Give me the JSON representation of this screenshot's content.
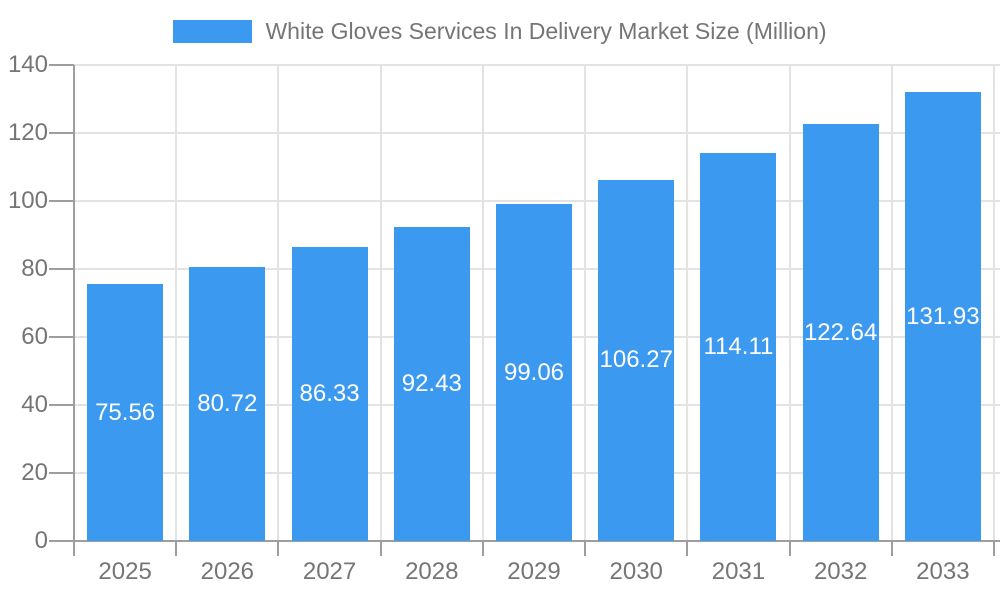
{
  "legend": {
    "swatch_color": "#3B99F0"
  },
  "chart_data": {
    "type": "bar",
    "title": "White Gloves Services In Delivery Market Size (Million)",
    "categories": [
      "2025",
      "2026",
      "2027",
      "2028",
      "2029",
      "2030",
      "2031",
      "2032",
      "2033"
    ],
    "values": [
      75.56,
      80.72,
      86.33,
      92.43,
      99.06,
      106.27,
      114.11,
      122.64,
      131.93
    ],
    "value_labels": [
      "75.56",
      "80.72",
      "86.33",
      "92.43",
      "99.06",
      "106.27",
      "114.11",
      "122.64",
      "131.93"
    ],
    "xlabel": "",
    "ylabel": "",
    "ylim": [
      0,
      140
    ],
    "yticks": [
      0,
      20,
      40,
      60,
      80,
      100,
      120,
      140
    ],
    "grid": true,
    "legend_position": "top",
    "bar_color": "#3B99F0",
    "value_label_color": "#FFFFFF",
    "axis_label_color": "#757575",
    "axis_line_color": "#9E9E9E",
    "grid_color": "#E3E3E3",
    "background": "#FFFFFF"
  }
}
